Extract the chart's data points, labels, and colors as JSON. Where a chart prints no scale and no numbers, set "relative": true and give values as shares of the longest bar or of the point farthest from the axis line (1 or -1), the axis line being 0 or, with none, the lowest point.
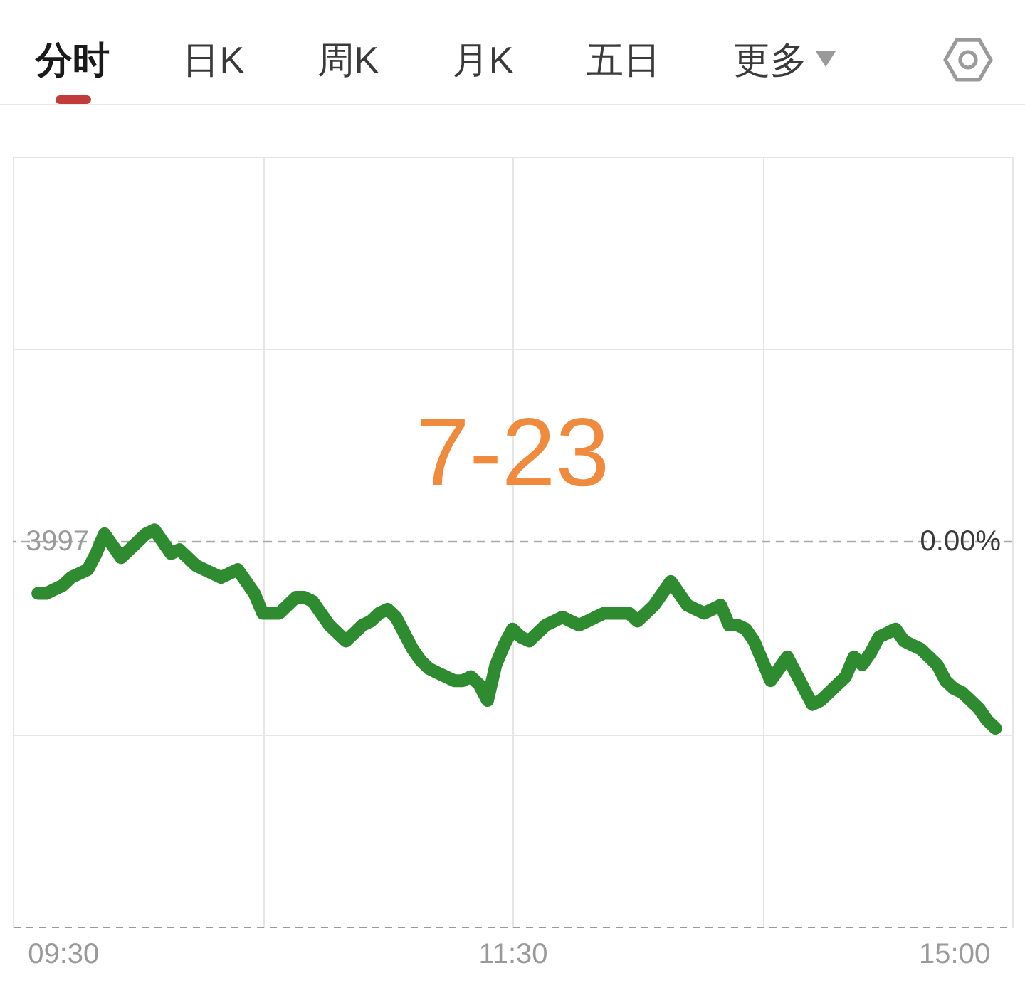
{
  "chart_data": {
    "type": "line",
    "title": "7-23",
    "subtitle": "分时 日K 周K 月K 五日 更多",
    "annotations": [
      "3997",
      "0.00%"
    ],
    "categories": [
      null,
      null,
      null,
      null,
      null,
      null,
      "09:30",
      null,
      null,
      null,
      null,
      null,
      null,
      null,
      null,
      null,
      null,
      null,
      null,
      null,
      null,
      null,
      null,
      null,
      null,
      null,
      null,
      null,
      null,
      null,
      null,
      null,
      null,
      null,
      null,
      null,
      null,
      null,
      null,
      null,
      null,
      null,
      null,
      null,
      null,
      null,
      null,
      null,
      null,
      null,
      null,
      null,
      null,
      null,
      null,
      null,
      null,
      null,
      null,
      null,
      "11:30",
      null,
      null,
      null,
      null,
      null,
      null,
      null,
      null,
      null,
      null,
      null,
      null,
      null,
      null,
      null,
      null,
      null,
      null,
      null,
      null,
      null,
      null,
      null,
      null,
      null,
      null,
      null,
      null,
      null,
      null,
      null,
      null,
      null,
      null,
      null,
      null,
      null,
      null,
      null,
      null,
      null,
      null,
      null,
      null,
      null,
      null,
      null,
      null,
      null,
      null,
      null,
      null,
      "15:00",
      null,
      null,
      null,
      null,
      null,
      null,
      null
    ],
    "relative": true,
    "series": [
      {
        "color": "#2e8b30",
        "values": [
          null,
          null,
          null,
          0.84,
          0.84,
          0.85,
          0.86,
          0.88,
          0.89,
          0.9,
          0.94,
          0.99,
          0.96,
          0.93,
          0.95,
          0.97,
          0.99,
          1,
          0.97,
          0.94,
          0.95,
          0.93,
          0.91,
          0.9,
          0.89,
          0.88,
          0.89,
          0.9,
          0.87,
          0.84,
          0.79,
          0.79,
          0.79,
          0.81,
          0.83,
          0.83,
          0.82,
          0.79,
          0.76,
          0.74,
          0.72,
          0.74,
          0.76,
          0.77,
          0.79,
          0.8,
          0.78,
          0.74,
          0.7,
          0.67,
          0.65,
          0.64,
          0.63,
          0.62,
          0.62,
          0.63,
          0.61,
          0.57,
          0.66,
          0.71,
          0.75,
          0.73,
          0.72,
          0.74,
          0.76,
          0.77,
          0.78,
          0.77,
          0.76,
          0.77,
          0.78,
          0.79,
          0.79,
          0.79,
          0.79,
          0.77,
          0.79,
          0.81,
          0.84,
          0.87,
          0.84,
          0.81,
          0.8,
          0.79,
          0.8,
          0.81,
          0.76,
          0.76,
          0.75,
          0.72,
          0.67,
          0.62,
          0.65,
          0.68,
          0.64,
          0.6,
          0.56,
          0.57,
          0.59,
          0.61,
          0.63,
          0.68,
          0.66,
          0.69,
          0.73,
          0.74,
          0.75,
          0.72,
          0.71,
          0.7,
          0.68,
          0.66,
          0.62,
          0.6,
          0.59,
          0.57,
          0.55,
          0.52,
          0.5,
          null,
          null
        ]
      }
    ],
    "ref_lines": [
      {
        "axis": "y",
        "value": 0.97,
        "color": "#aaaaaa",
        "line_style": "dashed"
      }
    ],
    "grid": true
  }
}
